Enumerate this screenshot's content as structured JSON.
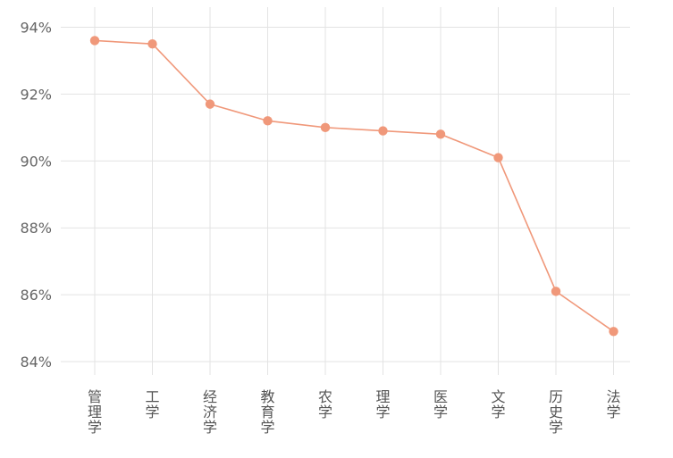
{
  "chart_data": {
    "type": "line",
    "title": "",
    "xlabel": "",
    "ylabel": "",
    "categories": [
      "管理学",
      "工学",
      "经济学",
      "教育学",
      "农学",
      "理学",
      "医学",
      "文学",
      "历史学",
      "法学"
    ],
    "series": [
      {
        "values": [
          93.6,
          93.5,
          91.7,
          91.2,
          91.0,
          90.9,
          90.8,
          90.1,
          86.1,
          84.9
        ]
      }
    ],
    "y_ticks": [
      "84%",
      "86%",
      "88%",
      "90%",
      "92%",
      "94%"
    ],
    "ylim": [
      83.6,
      94.6
    ],
    "y_tick_values": [
      84,
      86,
      88,
      90,
      92,
      94
    ],
    "line_color": "#f0987a",
    "grid_color": "#e3e3e3",
    "grid": true,
    "legend": "none"
  }
}
